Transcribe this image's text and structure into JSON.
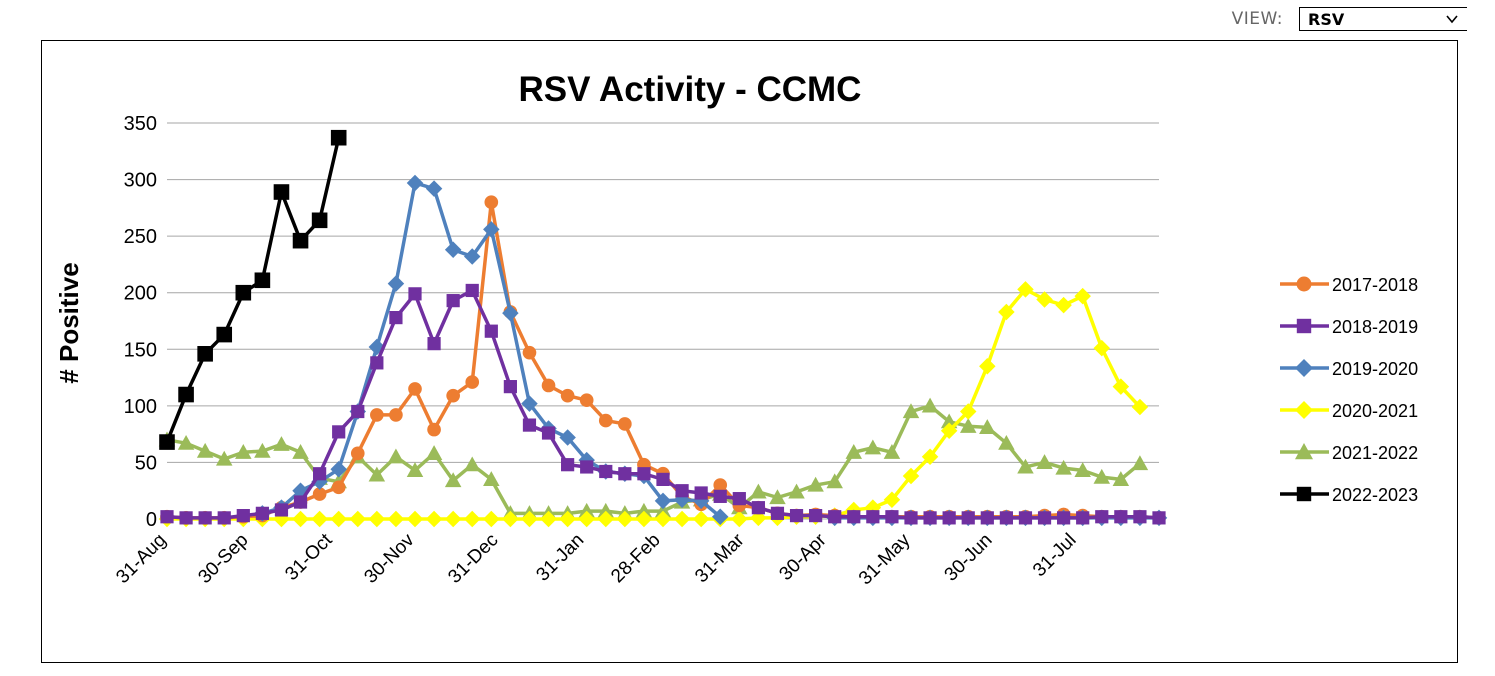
{
  "view": {
    "label": "VIEW:",
    "selected": "RSV"
  },
  "chart_data": {
    "type": "line",
    "title": "RSV Activity - CCMC",
    "xlabel": "",
    "ylabel": "# Positive",
    "ylim": [
      0,
      350
    ],
    "yticks": [
      0,
      50,
      100,
      150,
      200,
      250,
      300,
      350
    ],
    "x_index_range": [
      0,
      52
    ],
    "x_tick_labels": [
      {
        "index": 0,
        "label": "31-Aug"
      },
      {
        "index": 4.3,
        "label": "30-Sep"
      },
      {
        "index": 8.7,
        "label": "31-Oct"
      },
      {
        "index": 13,
        "label": "30-Nov"
      },
      {
        "index": 17.4,
        "label": "31-Dec"
      },
      {
        "index": 21.9,
        "label": "31-Jan"
      },
      {
        "index": 25.9,
        "label": "28-Feb"
      },
      {
        "index": 30.3,
        "label": "31-Mar"
      },
      {
        "index": 34.6,
        "label": "30-Apr"
      },
      {
        "index": 39,
        "label": "31-May"
      },
      {
        "index": 43.3,
        "label": "30-Jun"
      },
      {
        "index": 47.7,
        "label": "31-Jul"
      }
    ],
    "grid": true,
    "legend_position": "right",
    "series": [
      {
        "name": "2017-2018",
        "color": "#ED7D31",
        "marker": "circle",
        "values": [
          2,
          1,
          1,
          1,
          2,
          3,
          10,
          15,
          22,
          28,
          58,
          92,
          92,
          115,
          79,
          109,
          121,
          280,
          183,
          147,
          118,
          109,
          105,
          87,
          84,
          48,
          40,
          20,
          13,
          30,
          12,
          10,
          5,
          3,
          4,
          3,
          2,
          2,
          2,
          2,
          2,
          2,
          2,
          2,
          2,
          2,
          3,
          4,
          3,
          2,
          2,
          2,
          1
        ]
      },
      {
        "name": "2018-2019",
        "color": "#7030A0",
        "marker": "square",
        "values": [
          2,
          1,
          1,
          1,
          3,
          5,
          8,
          15,
          40,
          77,
          95,
          138,
          178,
          199,
          155,
          193,
          202,
          166,
          117,
          83,
          76,
          48,
          46,
          42,
          40,
          40,
          35,
          25,
          23,
          20,
          18,
          10,
          5,
          3,
          3,
          2,
          2,
          2,
          2,
          1,
          1,
          1,
          1,
          1,
          1,
          1,
          1,
          1,
          1,
          2,
          2,
          2,
          1
        ]
      },
      {
        "name": "2019-2020",
        "color": "#4F81BD",
        "marker": "diamond",
        "values": [
          null,
          null,
          null,
          null,
          null,
          5,
          10,
          25,
          33,
          44,
          95,
          152,
          208,
          297,
          292,
          238,
          232,
          256,
          182,
          102,
          80,
          72,
          52,
          42,
          40,
          38,
          16,
          17,
          16,
          2,
          null,
          null,
          null,
          null,
          null,
          1,
          1,
          1,
          1,
          1,
          1,
          1,
          1,
          1,
          1,
          1,
          1,
          1,
          1,
          1,
          1,
          1,
          1
        ]
      },
      {
        "name": "2020-2021",
        "color": "#FFFF00",
        "marker": "diamond",
        "values": [
          0,
          0,
          0,
          0,
          0,
          0,
          0,
          0,
          0,
          0,
          0,
          0,
          0,
          0,
          0,
          0,
          0,
          0,
          0,
          0,
          0,
          0,
          0,
          0,
          0,
          0,
          0,
          0,
          0,
          0,
          0,
          1,
          1,
          2,
          2,
          3,
          8,
          10,
          17,
          38,
          55,
          78,
          95,
          135,
          183,
          203,
          194,
          189,
          197,
          151,
          117,
          99,
          null
        ]
      },
      {
        "name": "2021-2022",
        "color": "#9BBB59",
        "marker": "triangle",
        "values": [
          70,
          67,
          60,
          53,
          59,
          60,
          66,
          59,
          36,
          33,
          55,
          39,
          55,
          43,
          58,
          34,
          48,
          35,
          5,
          5,
          5,
          5,
          7,
          7,
          5,
          7,
          7,
          15,
          17,
          22,
          10,
          24,
          19,
          24,
          30,
          33,
          59,
          63,
          59,
          95,
          100,
          86,
          82,
          81,
          67,
          46,
          50,
          45,
          43,
          37,
          35,
          49,
          null
        ]
      },
      {
        "name": "2022-2023",
        "color": "#000000",
        "marker": "square",
        "values": [
          68,
          110,
          146,
          163,
          200,
          211,
          289,
          246,
          264,
          337
        ]
      }
    ]
  }
}
